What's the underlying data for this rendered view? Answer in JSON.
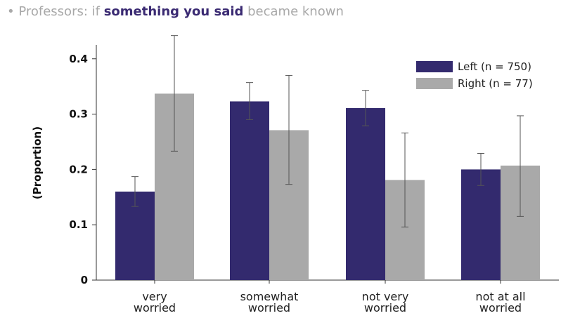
{
  "title": {
    "prefix": "• Professors: if ",
    "emphasis": "something you said",
    "suffix": " became known"
  },
  "colors": {
    "left": "#332a6e",
    "right": "#a9a9a9",
    "error": "#555555",
    "axis": "#333333"
  },
  "chart_data": {
    "type": "bar",
    "title": "• Professors: if something you said became known",
    "xlabel": "",
    "ylabel": "(Proportion)",
    "ylim": [
      0,
      0.42
    ],
    "yticks": [
      0,
      0.1,
      0.2,
      0.3,
      0.4
    ],
    "ytick_labels": [
      "0",
      "0.1",
      "0.2",
      "0.3",
      "0.4"
    ],
    "categories": [
      [
        "very",
        "worried"
      ],
      [
        "somewhat",
        "worried"
      ],
      [
        "not very",
        "worried"
      ],
      [
        "not at all",
        "worried"
      ]
    ],
    "series": [
      {
        "name": "Left (n = 750)",
        "values": [
          0.16,
          0.323,
          0.311,
          0.2
        ],
        "err_low": [
          0.133,
          0.29,
          0.279,
          0.171
        ],
        "err_high": [
          0.187,
          0.357,
          0.343,
          0.229
        ]
      },
      {
        "name": "Right (n = 77)",
        "values": [
          0.337,
          0.271,
          0.181,
          0.207
        ],
        "err_low": [
          0.233,
          0.173,
          0.096,
          0.115
        ],
        "err_high": [
          0.442,
          0.37,
          0.266,
          0.297
        ]
      }
    ],
    "legend_position": "top-right",
    "grid": false
  }
}
